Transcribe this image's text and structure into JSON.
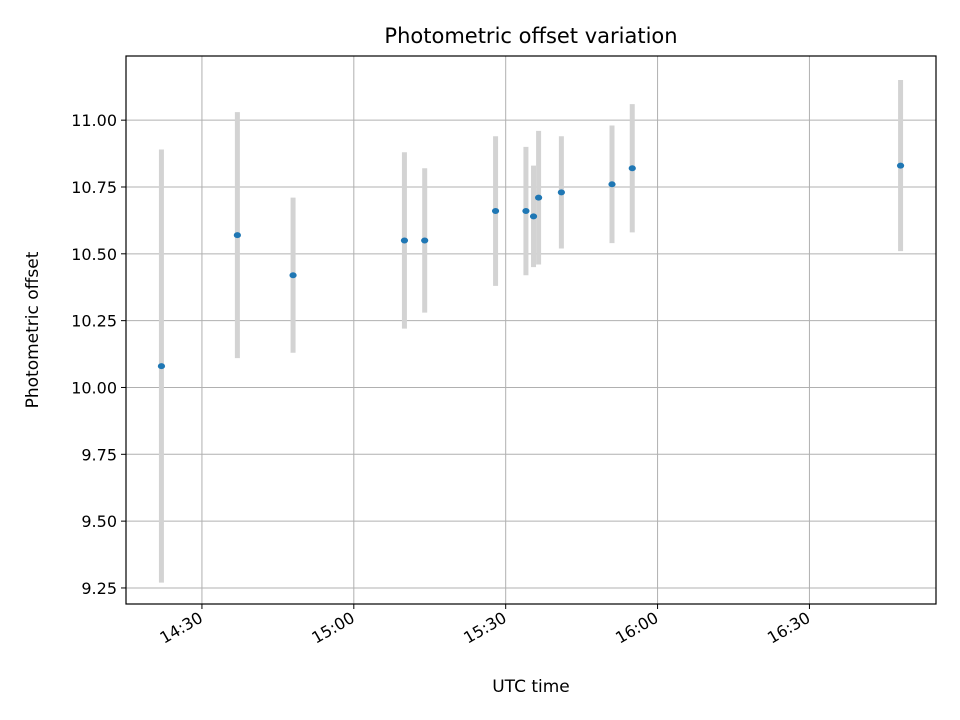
{
  "chart_data": {
    "type": "scatter",
    "title": "Photometric offset variation",
    "xlabel": "UTC time",
    "ylabel": "Photometric offset",
    "x_axis_kind": "time",
    "xlim": [
      "14:15",
      "16:55"
    ],
    "ylim": [
      9.19,
      11.24
    ],
    "x_ticks": [
      "14:30",
      "15:00",
      "15:30",
      "16:00",
      "16:30"
    ],
    "y_ticks": [
      "9.25",
      "9.50",
      "9.75",
      "10.00",
      "10.25",
      "10.50",
      "10.75",
      "11.00"
    ],
    "y_tick_values": [
      9.25,
      9.5,
      9.75,
      10.0,
      10.25,
      10.5,
      10.75,
      11.0
    ],
    "grid": true,
    "errorbar_color": "#d3d3d3",
    "point_color": "#1f77b4",
    "points": [
      {
        "x": "14:22",
        "y": 10.08,
        "err": 0.81
      },
      {
        "x": "14:37",
        "y": 10.57,
        "err": 0.46
      },
      {
        "x": "14:48",
        "y": 10.42,
        "err": 0.29
      },
      {
        "x": "15:10",
        "y": 10.55,
        "err": 0.33
      },
      {
        "x": "15:14",
        "y": 10.55,
        "err": 0.27
      },
      {
        "x": "15:28",
        "y": 10.66,
        "err": 0.28
      },
      {
        "x": "15:34",
        "y": 10.66,
        "err": 0.24
      },
      {
        "x": "15:35:30",
        "y": 10.64,
        "err": 0.19
      },
      {
        "x": "15:36:30",
        "y": 10.71,
        "err": 0.25
      },
      {
        "x": "15:41",
        "y": 10.73,
        "err": 0.21
      },
      {
        "x": "15:51",
        "y": 10.76,
        "err": 0.22
      },
      {
        "x": "15:55",
        "y": 10.82,
        "err": 0.24
      },
      {
        "x": "16:48",
        "y": 10.83,
        "err": 0.32
      }
    ]
  }
}
